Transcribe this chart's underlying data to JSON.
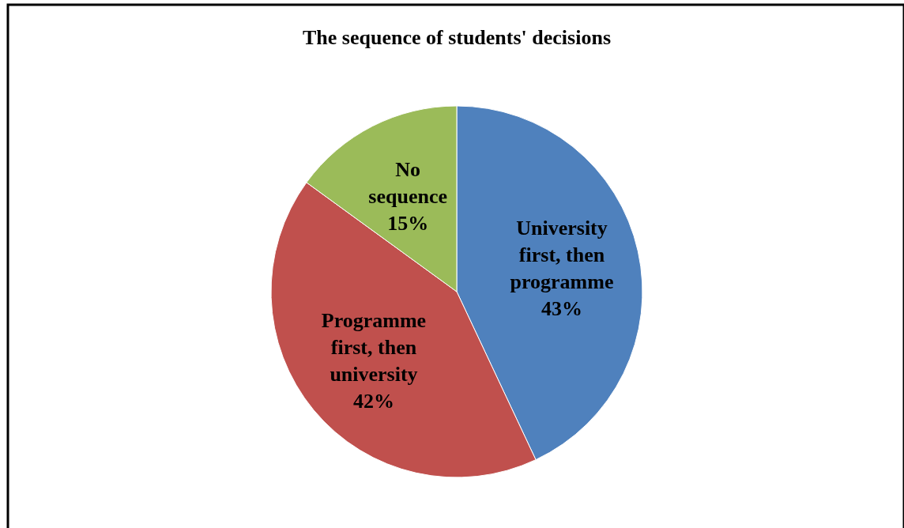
{
  "chart_data": {
    "type": "pie",
    "title": "The sequence of students' decisions",
    "categories": [
      "University first, then programme",
      "Programme first, then university",
      "No sequence"
    ],
    "values": [
      43,
      42,
      15
    ],
    "colors": [
      "#4f81bd",
      "#c0504d",
      "#9bbb59"
    ],
    "value_labels": [
      "43%",
      "42%",
      "15%"
    ]
  }
}
